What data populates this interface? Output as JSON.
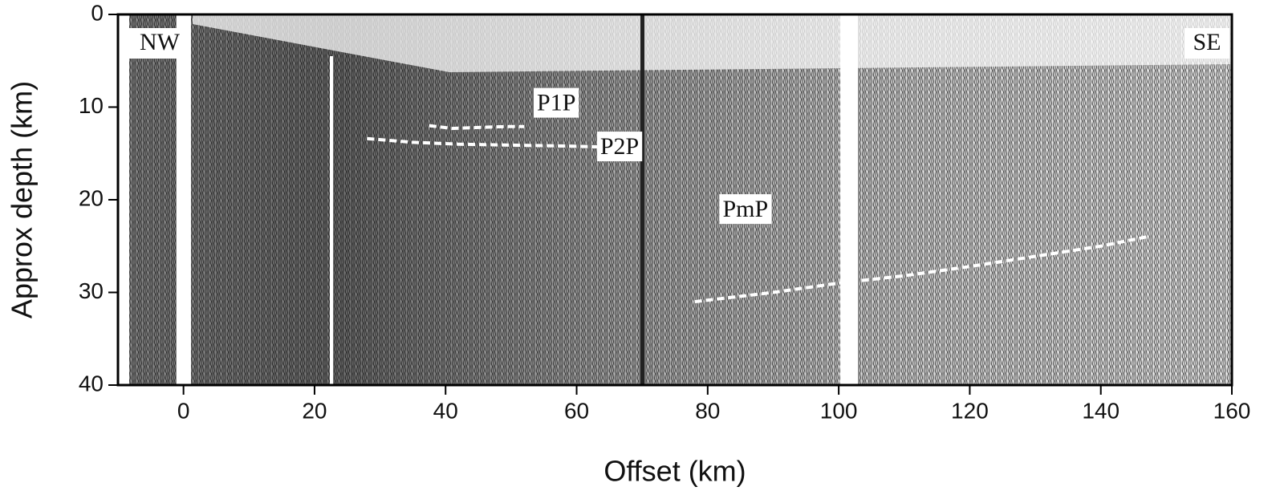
{
  "chart_data": {
    "type": "seismic-section",
    "xlabel": "Offset (km)",
    "ylabel": "Approx depth (km)",
    "xlim": [
      -10,
      160
    ],
    "ylim": [
      40,
      0
    ],
    "xticks": [
      0,
      20,
      40,
      60,
      80,
      100,
      120,
      140,
      160
    ],
    "yticks": [
      0,
      10,
      20,
      30,
      40
    ],
    "annotations": [
      "NW",
      "SE"
    ],
    "series": [
      {
        "name": "P1P",
        "color": "#ffffff",
        "x": [
          37.5,
          41,
          45,
          49,
          52
        ],
        "values": [
          12,
          12.3,
          12.2,
          12.1,
          12.1
        ]
      },
      {
        "name": "P2P",
        "color": "#ffffff",
        "x": [
          28,
          35,
          42,
          50,
          58,
          64,
          69
        ],
        "values": [
          13.4,
          13.8,
          14,
          14.1,
          14.2,
          14.3,
          14.3
        ]
      },
      {
        "name": "PmP",
        "color": "#ffffff",
        "x": [
          78,
          90,
          100,
          110,
          120,
          130,
          140,
          147
        ],
        "values": [
          31,
          30,
          29,
          28.2,
          27.2,
          26.1,
          25,
          24
        ]
      }
    ]
  }
}
